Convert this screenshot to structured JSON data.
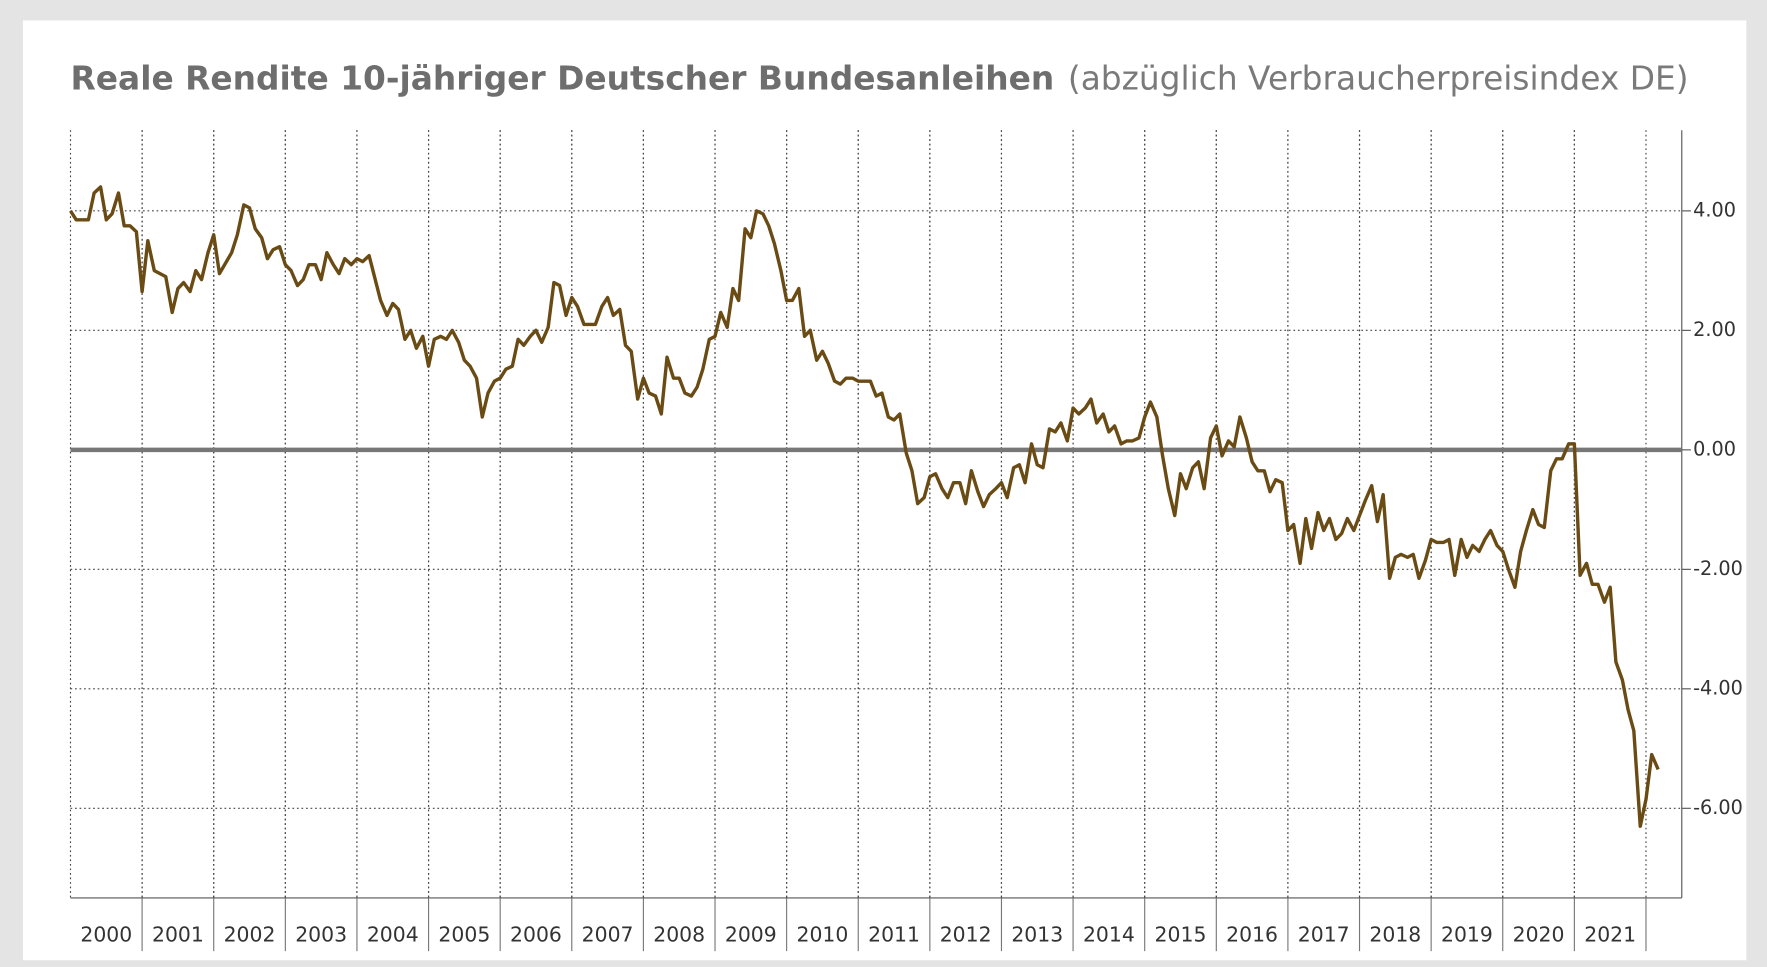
{
  "chart_data": {
    "type": "line",
    "title": "Reale Rendite 10-jähriger Deutscher Bundesanleihen",
    "subtitle": "(abzüglich Verbraucherpreisindex DE)",
    "color": "#6a4b14",
    "grid": true,
    "xlim": [
      2000,
      2022.5
    ],
    "xticks": [
      2000,
      2001,
      2002,
      2003,
      2004,
      2005,
      2006,
      2007,
      2008,
      2009,
      2010,
      2011,
      2012,
      2013,
      2014,
      2015,
      2016,
      2017,
      2018,
      2019,
      2020,
      2021
    ],
    "ylim": [
      -7.5,
      5.35
    ],
    "yticks": [
      {
        "value": -6,
        "label": "-6.00"
      },
      {
        "value": -4,
        "label": "-4.00"
      },
      {
        "value": -2,
        "label": "-2.00"
      },
      {
        "value": 0,
        "label": "0.00"
      },
      {
        "value": 2,
        "label": "2.00"
      },
      {
        "value": 4,
        "label": "4.00"
      }
    ],
    "x": [
      2000,
      2000.08,
      2000.25,
      2000.33,
      2000.42,
      2000.5,
      2000.58,
      2000.67,
      2000.75,
      2000.83,
      2000.92,
      2001,
      2001.08,
      2001.17,
      2001.33,
      2001.42,
      2001.5,
      2001.58,
      2001.67,
      2001.75,
      2001.83,
      2001.92,
      2002,
      2002.08,
      2002.25,
      2002.33,
      2002.42,
      2002.5,
      2002.58,
      2002.67,
      2002.75,
      2002.83,
      2002.92,
      2003,
      2003.08,
      2003.17,
      2003.25,
      2003.33,
      2003.42,
      2003.5,
      2003.58,
      2003.67,
      2003.75,
      2003.83,
      2003.92,
      2004,
      2004.08,
      2004.17,
      2004.33,
      2004.42,
      2004.5,
      2004.58,
      2004.67,
      2004.75,
      2004.83,
      2004.92,
      2005,
      2005.08,
      2005.17,
      2005.25,
      2005.33,
      2005.42,
      2005.5,
      2005.58,
      2005.67,
      2005.75,
      2005.83,
      2005.92,
      2006,
      2006.08,
      2006.17,
      2006.25,
      2006.33,
      2006.42,
      2006.5,
      2006.58,
      2006.67,
      2006.75,
      2006.83,
      2006.92,
      2007,
      2007.08,
      2007.17,
      2007.25,
      2007.33,
      2007.42,
      2007.5,
      2007.58,
      2007.67,
      2007.75,
      2007.83,
      2007.92,
      2008,
      2008.08,
      2008.17,
      2008.25,
      2008.33,
      2008.42,
      2008.5,
      2008.58,
      2008.67,
      2008.75,
      2008.83,
      2008.92,
      2009,
      2009.08,
      2009.17,
      2009.25,
      2009.33,
      2009.42,
      2009.5,
      2009.58,
      2009.67,
      2009.75,
      2009.83,
      2009.92,
      2010,
      2010.08,
      2010.17,
      2010.25,
      2010.33,
      2010.42,
      2010.5,
      2010.58,
      2010.67,
      2010.75,
      2010.83,
      2010.92,
      2011,
      2011.17,
      2011.25,
      2011.33,
      2011.42,
      2011.5,
      2011.58,
      2011.67,
      2011.75,
      2011.83,
      2011.92,
      2012,
      2012.08,
      2012.17,
      2012.25,
      2012.33,
      2012.42,
      2012.5,
      2012.58,
      2012.67,
      2012.75,
      2012.83,
      2012.92,
      2013,
      2013.08,
      2013.17,
      2013.25,
      2013.33,
      2013.42,
      2013.5,
      2013.58,
      2013.67,
      2013.75,
      2013.83,
      2013.92,
      2014,
      2014.08,
      2014.17,
      2014.25,
      2014.33,
      2014.42,
      2014.5,
      2014.58,
      2014.67,
      2014.75,
      2014.83,
      2014.92,
      2015,
      2015.08,
      2015.17,
      2015.25,
      2015.33,
      2015.42,
      2015.5,
      2015.58,
      2015.67,
      2015.75,
      2015.83,
      2015.92,
      2016,
      2016.08,
      2016.17,
      2016.25,
      2016.33,
      2016.42,
      2016.5,
      2016.58,
      2016.67,
      2016.75,
      2016.83,
      2016.92,
      2017,
      2017.08,
      2017.17,
      2017.25,
      2017.33,
      2017.42,
      2017.5,
      2017.58,
      2017.67,
      2017.75,
      2017.83,
      2017.92,
      2018,
      2018.08,
      2018.17,
      2018.25,
      2018.33,
      2018.42,
      2018.5,
      2018.58,
      2018.67,
      2018.75,
      2018.83,
      2018.92,
      2019,
      2019.08,
      2019.17,
      2019.25,
      2019.33,
      2019.42,
      2019.5,
      2019.58,
      2019.67,
      2019.75,
      2019.83,
      2019.92,
      2020,
      2020.08,
      2020.17,
      2020.25,
      2020.33,
      2020.42,
      2020.5,
      2020.58,
      2020.67,
      2020.75,
      2020.83,
      2020.92,
      2021,
      2021.08,
      2021.17,
      2021.25,
      2021.33,
      2021.42,
      2021.5,
      2021.58,
      2021.67,
      2021.75,
      2021.83,
      2021.92,
      2022,
      2022.08,
      2022.17
    ],
    "values": [
      4.0,
      3.85,
      3.85,
      4.3,
      4.4,
      3.85,
      3.95,
      4.3,
      3.75,
      3.75,
      3.65,
      2.65,
      3.5,
      3.0,
      2.9,
      2.3,
      2.7,
      2.8,
      2.65,
      3.0,
      2.85,
      3.3,
      3.6,
      2.95,
      3.3,
      3.6,
      4.1,
      4.05,
      3.7,
      3.55,
      3.2,
      3.35,
      3.4,
      3.1,
      3.0,
      2.75,
      2.85,
      3.1,
      3.1,
      2.85,
      3.3,
      3.1,
      2.95,
      3.2,
      3.1,
      3.2,
      3.15,
      3.25,
      2.5,
      2.25,
      2.45,
      2.35,
      1.85,
      2.0,
      1.7,
      1.9,
      1.4,
      1.85,
      1.9,
      1.85,
      2.0,
      1.8,
      1.5,
      1.4,
      1.2,
      0.55,
      0.95,
      1.15,
      1.2,
      1.35,
      1.4,
      1.85,
      1.75,
      1.9,
      2.0,
      1.8,
      2.05,
      2.8,
      2.75,
      2.25,
      2.55,
      2.4,
      2.1,
      2.1,
      2.1,
      2.4,
      2.55,
      2.25,
      2.35,
      1.75,
      1.65,
      0.85,
      1.2,
      0.95,
      0.9,
      0.6,
      1.55,
      1.2,
      1.2,
      0.95,
      0.9,
      1.05,
      1.35,
      1.85,
      1.9,
      2.3,
      2.05,
      2.7,
      2.5,
      3.7,
      3.55,
      4.0,
      3.95,
      3.75,
      3.45,
      3.0,
      2.5,
      2.5,
      2.7,
      1.9,
      2.0,
      1.5,
      1.65,
      1.45,
      1.15,
      1.1,
      1.2,
      1.2,
      1.15,
      1.15,
      0.9,
      0.95,
      0.55,
      0.5,
      0.6,
      -0.05,
      -0.35,
      -0.9,
      -0.8,
      -0.45,
      -0.4,
      -0.65,
      -0.8,
      -0.55,
      -0.55,
      -0.9,
      -0.35,
      -0.7,
      -0.95,
      -0.75,
      -0.65,
      -0.55,
      -0.8,
      -0.3,
      -0.25,
      -0.55,
      0.1,
      -0.25,
      -0.3,
      0.35,
      0.3,
      0.45,
      0.15,
      0.7,
      0.6,
      0.7,
      0.85,
      0.45,
      0.6,
      0.3,
      0.4,
      0.1,
      0.15,
      0.15,
      0.2,
      0.55,
      0.8,
      0.55,
      -0.1,
      -0.65,
      -1.1,
      -0.4,
      -0.65,
      -0.3,
      -0.2,
      -0.65,
      0.2,
      0.4,
      -0.1,
      0.15,
      0.05,
      0.55,
      0.2,
      -0.2,
      -0.35,
      -0.35,
      -0.7,
      -0.5,
      -0.55,
      -1.35,
      -1.25,
      -1.9,
      -1.15,
      -1.65,
      -1.05,
      -1.35,
      -1.15,
      -1.5,
      -1.4,
      -1.15,
      -1.35,
      -1.1,
      -0.85,
      -0.6,
      -1.2,
      -0.75,
      -2.15,
      -1.8,
      -1.75,
      -1.8,
      -1.75,
      -2.15,
      -1.85,
      -1.5,
      -1.55,
      -1.55,
      -1.5,
      -2.1,
      -1.5,
      -1.8,
      -1.6,
      -1.7,
      -1.5,
      -1.35,
      -1.6,
      -1.7,
      -2.0,
      -2.3,
      -1.7,
      -1.35,
      -1.0,
      -1.25,
      -1.3,
      -0.35,
      -0.15,
      -0.15,
      0.1,
      0.1,
      -2.1,
      -1.9,
      -2.25,
      -2.25,
      -2.55,
      -2.3,
      -3.55,
      -3.85,
      -4.35,
      -4.7,
      -6.3,
      -5.85,
      -5.1,
      -5.35
    ]
  }
}
